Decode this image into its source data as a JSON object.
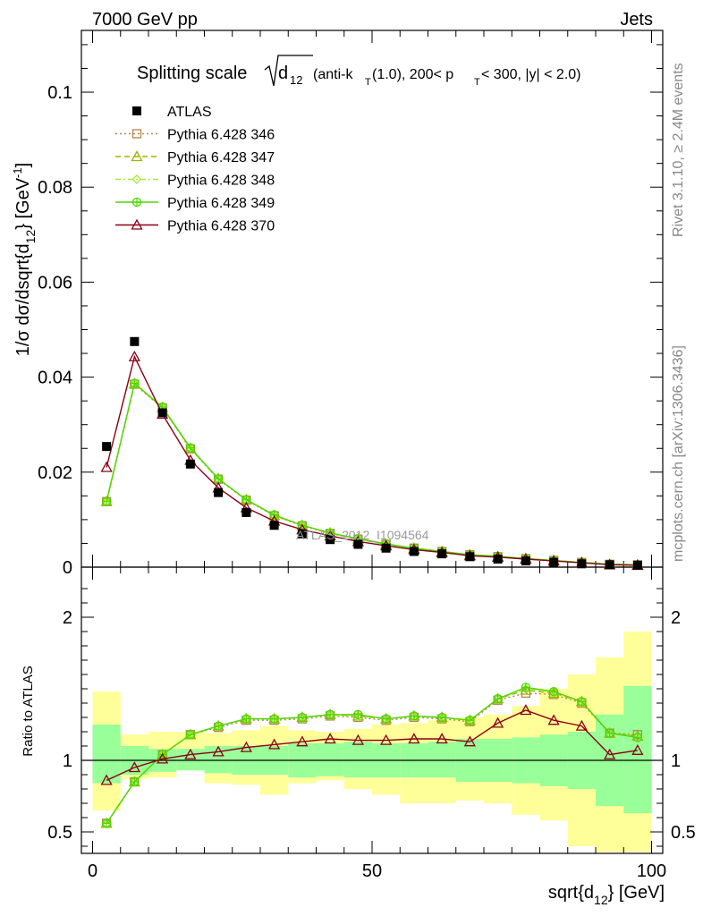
{
  "header": {
    "left": "7000 GeV pp",
    "right": "Jets"
  },
  "title": {
    "prefix": "Splitting scale",
    "sym_d": "d",
    "sym_12": "12",
    "suffix_a": " (anti-k",
    "sub_T": "T",
    "suffix_b": "(1.0), 200< p",
    "sub_T2": "T",
    "suffix_c": " < 300, |y| < 2.0)"
  },
  "side_labels": {
    "rivet": "Rivet 3.1.10, ≥ 2.4M events",
    "mcplots": "mcplots.cern.ch [arXiv:1306.3436]"
  },
  "watermark": "ATLAS_2012_I1094564",
  "y_label_top": {
    "a": "1/σ dσ/dsqrt{d",
    "sub": "12",
    "b": "} [GeV",
    "sup": "-1",
    "c": "]"
  },
  "y_label_bottom": "Ratio to ATLAS",
  "x_label": {
    "a": "sqrt{d",
    "sub": "12",
    "b": "} [GeV]"
  },
  "colors": {
    "data": "#000000",
    "p346": "#b8864e",
    "p347": "#9ab800",
    "p348": "#a8e83c",
    "p349": "#4cd800",
    "p370": "#8b0014",
    "band_inner": "#99ff99",
    "band_outer": "#ffff99"
  },
  "chart_data": {
    "type": "line",
    "x": [
      2.5,
      7.5,
      12.5,
      17.5,
      22.5,
      27.5,
      32.5,
      37.5,
      42.5,
      47.5,
      52.5,
      57.5,
      62.5,
      67.5,
      72.5,
      77.5,
      82.5,
      87.5,
      92.5,
      97.5
    ],
    "xlim": [
      -2,
      102
    ],
    "xticks": [
      "0",
      "50",
      "100"
    ],
    "top_panel": {
      "ylim": [
        0,
        0.113
      ],
      "yticks": [
        "0",
        "0.02",
        "0.04",
        "0.06",
        "0.08",
        "0.1"
      ],
      "data": {
        "name": "ATLAS",
        "values": [
          0.0254,
          0.0475,
          0.0325,
          0.0217,
          0.0157,
          0.0115,
          0.0088,
          0.007,
          0.0058,
          0.0048,
          0.004,
          0.0033,
          0.0028,
          0.0022,
          0.0017,
          0.0013,
          0.001,
          0.0007,
          0.0005,
          0.0004
        ]
      },
      "series": [
        {
          "name": "Pythia 6.428 346",
          "values": [
            0.0138,
            0.0385,
            0.0335,
            0.0249,
            0.0185,
            0.0141,
            0.0108,
            0.0087,
            0.0071,
            0.0059,
            0.0048,
            0.004,
            0.0033,
            0.0026,
            0.0022,
            0.0018,
            0.0014,
            0.001,
            0.0006,
            0.0005
          ]
        },
        {
          "name": "Pythia 6.428 347",
          "values": [
            0.0138,
            0.0386,
            0.0336,
            0.025,
            0.0186,
            0.0142,
            0.0109,
            0.0088,
            0.0072,
            0.0059,
            0.0048,
            0.004,
            0.0033,
            0.0026,
            0.0022,
            0.0018,
            0.0014,
            0.001,
            0.0006,
            0.0005
          ]
        },
        {
          "name": "Pythia 6.428 348",
          "values": [
            0.0138,
            0.0386,
            0.0336,
            0.025,
            0.0186,
            0.0142,
            0.0109,
            0.0088,
            0.0072,
            0.0059,
            0.0048,
            0.004,
            0.0033,
            0.0026,
            0.0022,
            0.0018,
            0.0014,
            0.001,
            0.0006,
            0.0005
          ]
        },
        {
          "name": "Pythia 6.428 349",
          "values": [
            0.0138,
            0.0387,
            0.0337,
            0.0251,
            0.0186,
            0.0142,
            0.011,
            0.0088,
            0.0072,
            0.006,
            0.0049,
            0.004,
            0.0033,
            0.0026,
            0.0023,
            0.0018,
            0.0014,
            0.001,
            0.0006,
            0.0005
          ]
        },
        {
          "name": "Pythia 6.428 370",
          "values": [
            0.021,
            0.0443,
            0.0322,
            0.0225,
            0.0167,
            0.0125,
            0.0097,
            0.0079,
            0.0066,
            0.0054,
            0.0045,
            0.0037,
            0.0031,
            0.0024,
            0.0021,
            0.0017,
            0.0013,
            0.0009,
            0.0005,
            0.0004
          ]
        }
      ]
    },
    "ratio_panel": {
      "ylim": [
        0.35,
        2.35
      ],
      "yticks": [
        "0.5",
        "1",
        "2"
      ],
      "band_inner": [
        [
          0.84,
          1.25
        ],
        [
          0.9,
          1.1
        ],
        [
          0.92,
          1.08
        ],
        [
          0.93,
          1.08
        ],
        [
          0.91,
          1.1
        ],
        [
          0.9,
          1.1
        ],
        [
          0.9,
          1.1
        ],
        [
          0.88,
          1.12
        ],
        [
          0.89,
          1.12
        ],
        [
          0.88,
          1.13
        ],
        [
          0.88,
          1.12
        ],
        [
          0.88,
          1.12
        ],
        [
          0.88,
          1.13
        ],
        [
          0.85,
          1.15
        ],
        [
          0.85,
          1.15
        ],
        [
          0.84,
          1.16
        ],
        [
          0.82,
          1.18
        ],
        [
          0.8,
          1.2
        ],
        [
          0.68,
          1.32
        ],
        [
          0.63,
          1.52
        ]
      ],
      "band_outer": [
        [
          0.65,
          1.48
        ],
        [
          0.87,
          1.18
        ],
        [
          0.88,
          1.2
        ],
        [
          0.93,
          1.2
        ],
        [
          0.84,
          1.19
        ],
        [
          0.83,
          1.21
        ],
        [
          0.76,
          1.24
        ],
        [
          0.84,
          1.21
        ],
        [
          0.86,
          1.2
        ],
        [
          0.8,
          1.22
        ],
        [
          0.76,
          1.25
        ],
        [
          0.7,
          1.26
        ],
        [
          0.7,
          1.28
        ],
        [
          0.72,
          1.3
        ],
        [
          0.7,
          1.32
        ],
        [
          0.62,
          1.38
        ],
        [
          0.58,
          1.5
        ],
        [
          0.4,
          1.6
        ],
        [
          0.36,
          1.72
        ],
        [
          0.36,
          1.9
        ]
      ],
      "series": [
        {
          "name": "Pythia 6.428 346",
          "values": [
            0.56,
            0.85,
            1.04,
            1.18,
            1.23,
            1.28,
            1.28,
            1.29,
            1.31,
            1.3,
            1.28,
            1.3,
            1.29,
            1.27,
            1.42,
            1.47,
            1.46,
            1.4,
            1.19,
            1.18
          ]
        },
        {
          "name": "Pythia 6.428 347",
          "values": [
            0.56,
            0.85,
            1.04,
            1.18,
            1.24,
            1.29,
            1.29,
            1.3,
            1.32,
            1.31,
            1.29,
            1.31,
            1.3,
            1.28,
            1.43,
            1.49,
            1.47,
            1.41,
            1.19,
            1.17
          ]
        },
        {
          "name": "Pythia 6.428 348",
          "values": [
            0.56,
            0.85,
            1.04,
            1.18,
            1.24,
            1.29,
            1.29,
            1.3,
            1.32,
            1.31,
            1.29,
            1.31,
            1.3,
            1.28,
            1.43,
            1.5,
            1.48,
            1.41,
            1.19,
            1.16
          ]
        },
        {
          "name": "Pythia 6.428 349",
          "values": [
            0.56,
            0.85,
            1.04,
            1.18,
            1.24,
            1.29,
            1.29,
            1.3,
            1.32,
            1.32,
            1.29,
            1.31,
            1.3,
            1.28,
            1.43,
            1.51,
            1.48,
            1.41,
            1.19,
            1.16
          ]
        },
        {
          "name": "Pythia 6.428 370",
          "values": [
            0.86,
            0.95,
            1.01,
            1.04,
            1.06,
            1.09,
            1.11,
            1.13,
            1.15,
            1.14,
            1.14,
            1.15,
            1.15,
            1.13,
            1.26,
            1.35,
            1.28,
            1.24,
            1.04,
            1.07
          ]
        }
      ]
    }
  }
}
